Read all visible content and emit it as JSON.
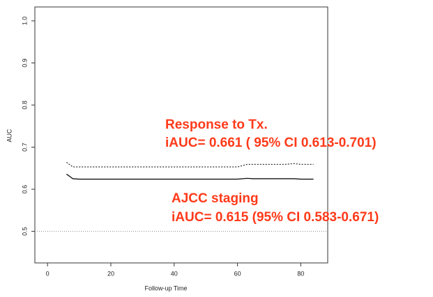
{
  "chart_data": {
    "type": "line",
    "x": [
      6,
      8,
      10,
      20,
      30,
      40,
      50,
      60,
      63,
      65,
      70,
      75,
      78,
      80,
      84
    ],
    "series": [
      {
        "name": "Response to Tx.",
        "color": "#333333",
        "dash": "2,2",
        "values": [
          0.664,
          0.653,
          0.653,
          0.653,
          0.653,
          0.653,
          0.653,
          0.653,
          0.659,
          0.659,
          0.659,
          0.659,
          0.661,
          0.659,
          0.659
        ]
      },
      {
        "name": "AJCC staging",
        "color": "#111111",
        "values": [
          0.636,
          0.625,
          0.624,
          0.624,
          0.624,
          0.624,
          0.624,
          0.624,
          0.626,
          0.625,
          0.625,
          0.625,
          0.625,
          0.624,
          0.624
        ]
      }
    ],
    "reference_line": 0.5,
    "annotations": [
      "iAUC= 0.661  ( 95% CI 0.613-0.701)",
      "iAUC= 0.615  (95% CI 0.583-0.671)"
    ],
    "xlabel": "Follow-up Time",
    "ylabel": "AUC",
    "xlim": [
      -4,
      88.5
    ],
    "ylim": [
      0.425,
      1.033
    ],
    "xticks": [
      0,
      20,
      40,
      60,
      80
    ],
    "yticks": [
      0.5,
      0.6,
      0.7,
      0.8,
      0.9,
      {
        "value": 1,
        "label": "1.0"
      }
    ]
  }
}
